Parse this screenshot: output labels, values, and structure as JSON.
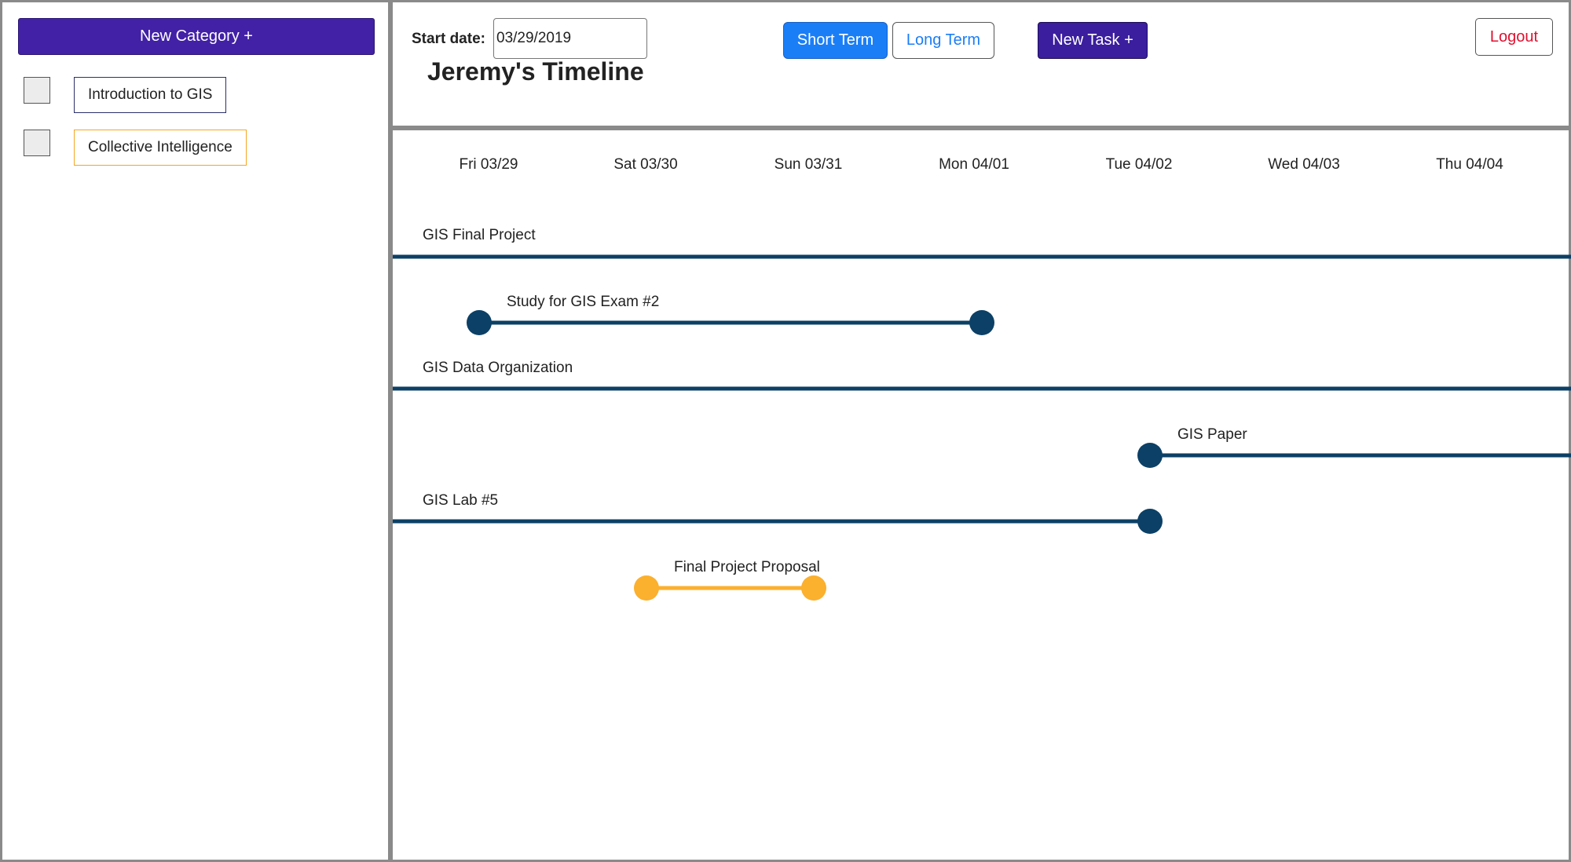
{
  "sidebar": {
    "new_category_label": "New Category +",
    "categories": [
      {
        "label": "Introduction to GIS",
        "color": "#2b2f6b"
      },
      {
        "label": "Collective Intelligence",
        "color": "#f5a623"
      }
    ]
  },
  "header": {
    "start_date_label": "Start date:",
    "start_date_value": "03/29/2019",
    "title": "Jeremy's Timeline",
    "short_term_label": "Short Term",
    "long_term_label": "Long Term",
    "new_task_label": "New Task +",
    "logout_label": "Logout"
  },
  "colors": {
    "accent_purple": "#4221a6",
    "short_term_blue": "#1a7ef7",
    "logout_red": "#e0102f",
    "task_navy": "#0c4066",
    "task_orange": "#fbb02e"
  },
  "timeline": {
    "days": [
      "Fri 03/29",
      "Sat 03/30",
      "Sun 03/31",
      "Mon 04/01",
      "Tue 04/02",
      "Wed 04/03",
      "Thu 04/04"
    ],
    "tasks": [
      {
        "name": "GIS Final Project",
        "start": "before",
        "end": "after",
        "category": "Introduction to GIS"
      },
      {
        "name": "Study for GIS Exam #2",
        "start": "03/29",
        "end": "04/01",
        "category": "Introduction to GIS"
      },
      {
        "name": "GIS Data Organization",
        "start": "before",
        "end": "after",
        "category": "Introduction to GIS"
      },
      {
        "name": "GIS Paper",
        "start": "04/02",
        "end": "after",
        "category": "Introduction to GIS"
      },
      {
        "name": "GIS Lab #5",
        "start": "before",
        "end": "04/02",
        "category": "Introduction to GIS"
      },
      {
        "name": "Final Project Proposal",
        "start": "03/30",
        "end": "03/31",
        "category": "Collective Intelligence"
      }
    ]
  }
}
